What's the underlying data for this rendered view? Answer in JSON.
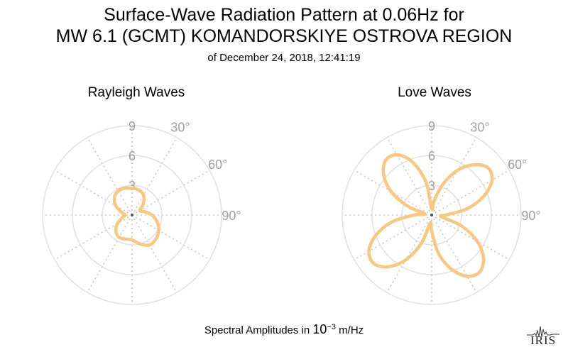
{
  "title": {
    "line1": "Surface-Wave Radiation Pattern at 0.06Hz for",
    "line2": "MW 6.1 (GCMT) KOMANDORSKIYE OSTROVA REGION",
    "line3": "of December 24, 2018, 12:41:19"
  },
  "footer": {
    "prefix": "Spectral Amplitudes in ",
    "base": "10",
    "exponent": "−3",
    "unit": " m/Hz"
  },
  "logo": {
    "text": "IRIS"
  },
  "colors": {
    "pattern": "#f9c77e",
    "grid_solid": "#e0e0e0",
    "grid_dotted": "#c8c8c8",
    "tick_text": "#a0a0a0"
  },
  "chart_data": [
    {
      "type": "polar-line",
      "title": "Rayleigh Waves",
      "rlim": [
        0,
        9
      ],
      "r_ticks": [
        "3",
        "6",
        "9"
      ],
      "angle_ticks": [
        "30°",
        "60°",
        "90°"
      ],
      "grid": true,
      "series": [
        {
          "theta": [
            0,
            15,
            30,
            45,
            60,
            75,
            90,
            105,
            120,
            135,
            150,
            165,
            180,
            195,
            210,
            225,
            240,
            255,
            270,
            285,
            300,
            315,
            330,
            345
          ],
          "r": [
            2.7,
            2.6,
            2.3,
            1.6,
            0.9,
            1.3,
            2.0,
            2.6,
            3.1,
            3.4,
            3.5,
            3.0,
            2.5,
            2.5,
            2.6,
            2.3,
            1.7,
            1.0,
            0.7,
            1.1,
            1.9,
            2.5,
            2.8,
            2.8
          ]
        }
      ]
    },
    {
      "type": "polar-line",
      "title": "Love Waves",
      "rlim": [
        0,
        9
      ],
      "r_ticks": [
        "3",
        "6",
        "9"
      ],
      "angle_ticks": [
        "30°",
        "60°",
        "90°"
      ],
      "grid": true,
      "series": [
        {
          "theta": [
            0,
            10,
            20,
            30,
            40,
            50,
            60,
            70,
            80,
            90,
            100,
            110,
            120,
            130,
            140,
            150,
            160,
            170,
            180,
            190,
            200,
            210,
            220,
            230,
            240,
            250,
            260,
            270,
            280,
            290,
            300,
            310,
            320,
            330,
            340,
            350
          ],
          "r": [
            0.6,
            1.5,
            3.3,
            5.2,
            6.6,
            7.4,
            7.0,
            5.6,
            3.6,
            1.4,
            1.0,
            3.2,
            5.3,
            6.8,
            7.5,
            7.1,
            5.8,
            3.9,
            1.6,
            0.8,
            3.0,
            5.2,
            6.8,
            7.6,
            7.3,
            6.0,
            4.1,
            1.8,
            0.7,
            2.5,
            4.7,
            6.3,
            7.2,
            7.0,
            5.7,
            3.4
          ]
        }
      ]
    }
  ]
}
